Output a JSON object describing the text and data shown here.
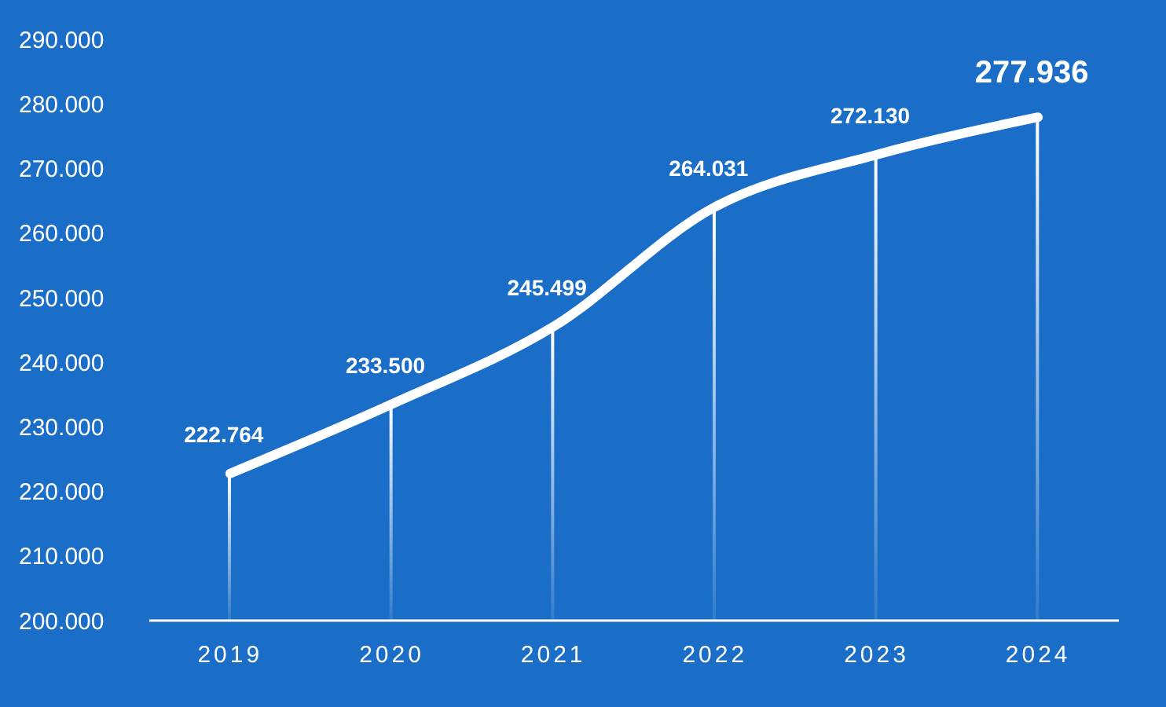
{
  "chart_data": {
    "type": "line",
    "categories": [
      "2019",
      "2020",
      "2021",
      "2022",
      "2023",
      "2024"
    ],
    "series": [
      {
        "type": "bar",
        "color": "#ffffff",
        "values": [
          222764,
          233500,
          245499,
          264031,
          272130,
          277936
        ]
      },
      {
        "color": "#ffffff",
        "values": [
          222764,
          233500,
          245499,
          264031,
          272130,
          277936
        ],
        "value_labels": [
          "222.764",
          "233.500",
          "245.499",
          "264.031",
          "272.130",
          "277.936"
        ]
      }
    ],
    "ylim": [
      200000,
      290000
    ],
    "yticks": [
      {
        "value": 200000,
        "label": "200.000"
      },
      {
        "value": 210000,
        "label": "210.000"
      },
      {
        "value": 220000,
        "label": "220.000"
      },
      {
        "value": 230000,
        "label": "230.000"
      },
      {
        "value": 240000,
        "label": "240.000"
      },
      {
        "value": 250000,
        "label": "250.000"
      },
      {
        "value": 260000,
        "label": "260.000"
      },
      {
        "value": 270000,
        "label": "270.000"
      },
      {
        "value": 280000,
        "label": "280.000"
      },
      {
        "value": 290000,
        "label": "290.000"
      }
    ],
    "grid": false,
    "legend": false,
    "marker": "none",
    "line_style": "solid"
  }
}
